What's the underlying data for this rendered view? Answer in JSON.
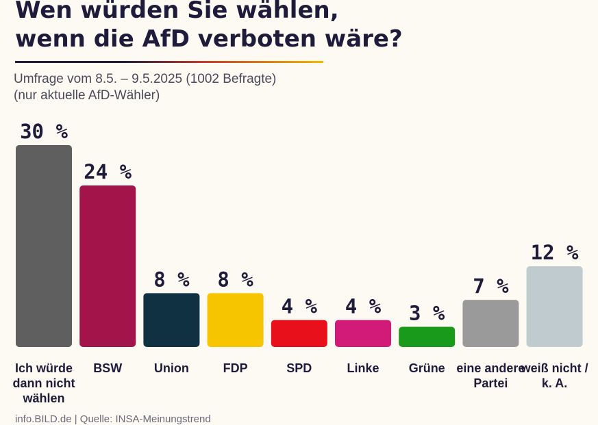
{
  "chart_data": {
    "type": "bar",
    "title_lines": [
      "Wen würden Sie wählen,",
      "wenn die AfD verboten wäre?"
    ],
    "subtitle_lines": [
      "Umfrage vom 8.5. – 9.5.2025 (1002 Befragte)",
      "(nur aktuelle AfD-Wähler)"
    ],
    "value_suffix": " %",
    "categories": [
      [
        "Ich würde",
        "dann nicht",
        "wählen"
      ],
      [
        "BSW"
      ],
      [
        "Union"
      ],
      [
        "FDP"
      ],
      [
        "SPD"
      ],
      [
        "Linke"
      ],
      [
        "Grüne"
      ],
      [
        "eine andere",
        "Partei"
      ],
      [
        "weiß nicht /",
        "k. A."
      ]
    ],
    "values": [
      30,
      24,
      8,
      8,
      4,
      4,
      3,
      7,
      12
    ],
    "colors": [
      "#5f5f5f",
      "#a3144a",
      "#0f3142",
      "#f7c500",
      "#e8101a",
      "#d21a79",
      "#1a9a1a",
      "#9a9a9a",
      "#c0cbcf"
    ],
    "ylim": [
      0,
      30
    ],
    "grid": false,
    "legend": "none"
  },
  "footer": "info.BILD.de | Quelle: INSA-Meinungstrend"
}
